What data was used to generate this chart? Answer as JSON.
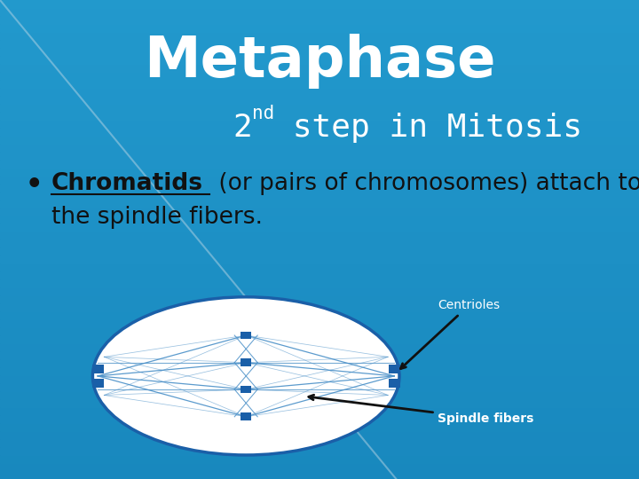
{
  "title": "Metaphase",
  "subtitle_2": "2",
  "subtitle_nd": "nd",
  "subtitle_rest": " step in Mitosis",
  "bullet_bold": "Chromatids",
  "bullet_normal": " (or pairs of chromosomes) attach to",
  "bullet_line2": "the spindle fibers.",
  "bg_color_top": "#1888be",
  "bg_color_bottom": "#35b8e8",
  "title_color": "#ffffff",
  "subtitle_color": "#ffffff",
  "bullet_color": "#111111",
  "diagram_bg": "#ffffff",
  "diagram_border": "#1a5fa8",
  "diagram_node_color": "#1a5fa8",
  "diagram_line_color": "#4a90c8",
  "label_color": "#ffffff",
  "arrow_color": "#111111",
  "centriole_label": "Centrioles",
  "spindle_label": "Spindle fibers",
  "diagonal_line_color": "#c8dce8",
  "diagonal_alpha": 0.45,
  "ecx": 0.385,
  "ecy": 0.215,
  "erx": 0.24,
  "ery": 0.165
}
